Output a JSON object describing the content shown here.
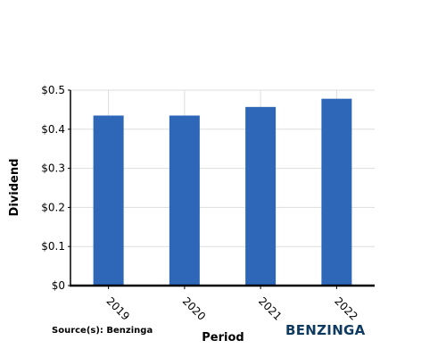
{
  "chart_data": {
    "type": "bar",
    "categories": [
      "2019",
      "2020",
      "2021",
      "2022"
    ],
    "values": [
      0.435,
      0.435,
      0.457,
      0.478
    ],
    "xlabel": "Period",
    "ylabel": "Dividend",
    "ylim": [
      0,
      0.5
    ],
    "yticks": [
      0,
      0.1,
      0.2,
      0.3,
      0.4,
      0.5
    ],
    "ytick_labels": [
      "$0",
      "$0.1",
      "$0.2",
      "$0.3",
      "$0.4",
      "$0.5"
    ],
    "grid": true,
    "bar_color": "#2e67b8",
    "grid_color": "#dddddd"
  },
  "footer": {
    "source": "Source(s): Benzinga",
    "brand": "BENZINGA",
    "brand_color": "#0f3a5f"
  }
}
